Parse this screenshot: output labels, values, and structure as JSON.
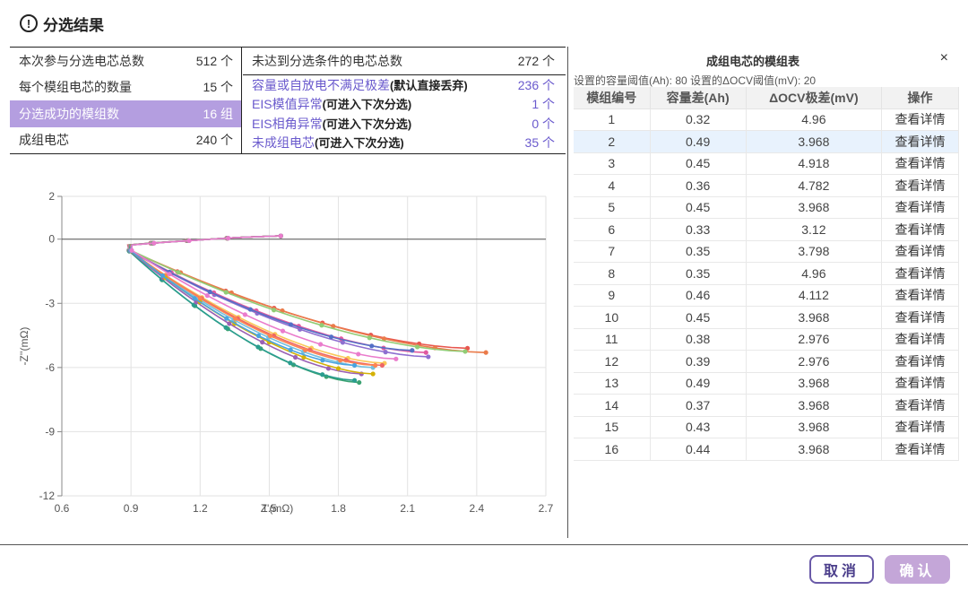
{
  "dialog": {
    "title_icon": "!",
    "title": "分选结果",
    "cancel_label": "取消",
    "confirm_label": "确认"
  },
  "summary_left": [
    {
      "label": "本次参与分选电芯总数",
      "value": "512 个"
    },
    {
      "label": "每个模组电芯的数量",
      "value": "15 个"
    },
    {
      "label": "分选成功的模组数",
      "value": "16 组",
      "active": true
    },
    {
      "label": "成组电芯",
      "value": "240 个"
    }
  ],
  "summary_right": {
    "header": {
      "label": "未达到分选条件的电芯总数",
      "value": "272 个"
    },
    "rows": [
      {
        "label": "容量或自放电不满足极差",
        "note": "(默认直接丢弃)",
        "value": "236 个"
      },
      {
        "label": "EIS模值异常",
        "note": "(可进入下次分选)",
        "value": "1 个"
      },
      {
        "label": "EIS相角异常",
        "note": "(可进入下次分选)",
        "value": "0 个"
      },
      {
        "label": "未成组电芯",
        "note": "(可进入下次分选)",
        "value": "35 个"
      }
    ]
  },
  "chart_data": {
    "type": "scatter",
    "xlabel": "Z'(mΩ)",
    "ylabel": "-Z''(mΩ)",
    "xlim": [
      0.6,
      2.7
    ],
    "ylim": [
      -12,
      2
    ],
    "xticks": [
      0.6,
      0.9,
      1.2,
      1.5,
      1.8,
      2.1,
      2.4,
      2.7
    ],
    "yticks": [
      2,
      0,
      -3,
      -6,
      -9,
      -12
    ],
    "xtick_labels": [
      "0.6",
      "0.9",
      "1.2",
      "1.5",
      "1.8",
      "2.1",
      "2.4",
      "2.7"
    ],
    "ytick_labels": [
      "2",
      "0",
      "-3",
      "-6",
      "-9",
      "-12"
    ],
    "grid": true,
    "series": [
      {
        "color": "#e8574f",
        "tip": [
          2.36,
          -5.1
        ]
      },
      {
        "color": "#ea7b4a",
        "tip": [
          2.44,
          -5.3
        ]
      },
      {
        "color": "#8e6fd0",
        "tip": [
          2.19,
          -5.5
        ]
      },
      {
        "color": "#e05aa0",
        "tip": [
          2.18,
          -5.3
        ]
      },
      {
        "color": "#5470c6",
        "tip": [
          2.12,
          -5.2
        ]
      },
      {
        "color": "#91cc75",
        "tip": [
          2.35,
          -5.25
        ]
      },
      {
        "color": "#fac858",
        "tip": [
          2.0,
          -5.8
        ]
      },
      {
        "color": "#ee6666",
        "tip": [
          1.99,
          -5.9
        ]
      },
      {
        "color": "#73c0de",
        "tip": [
          1.95,
          -6.0
        ]
      },
      {
        "color": "#3ba272",
        "tip": [
          1.89,
          -6.7
        ]
      },
      {
        "color": "#2a9d8f",
        "tip": [
          1.87,
          -6.6
        ]
      },
      {
        "color": "#fc8452",
        "tip": [
          1.96,
          -5.9
        ]
      },
      {
        "color": "#9a60b4",
        "tip": [
          1.9,
          -6.3
        ]
      },
      {
        "color": "#d4b106",
        "tip": [
          1.95,
          -6.3
        ]
      },
      {
        "color": "#4aa3df",
        "tip": [
          1.87,
          -5.9
        ]
      },
      {
        "color": "#ea7ccc",
        "tip": [
          2.05,
          -5.6
        ]
      }
    ]
  },
  "module_table": {
    "title": "成组电芯的模组表",
    "close_icon": "×",
    "subtitle": "设置的容量阈值(Ah): 80 设置的ΔOCV阈值(mV): 20",
    "columns": [
      "模组编号",
      "容量差(Ah)",
      "ΔOCV极差(mV)",
      "操作"
    ],
    "rows": [
      [
        "1",
        "0.32",
        "4.96",
        "查看详情"
      ],
      [
        "2",
        "0.49",
        "3.968",
        "查看详情"
      ],
      [
        "3",
        "0.45",
        "4.918",
        "查看详情"
      ],
      [
        "4",
        "0.36",
        "4.782",
        "查看详情"
      ],
      [
        "5",
        "0.45",
        "3.968",
        "查看详情"
      ],
      [
        "6",
        "0.33",
        "3.12",
        "查看详情"
      ],
      [
        "7",
        "0.35",
        "3.798",
        "查看详情"
      ],
      [
        "8",
        "0.35",
        "4.96",
        "查看详情"
      ],
      [
        "9",
        "0.46",
        "4.112",
        "查看详情"
      ],
      [
        "10",
        "0.45",
        "3.968",
        "查看详情"
      ],
      [
        "11",
        "0.38",
        "2.976",
        "查看详情"
      ],
      [
        "12",
        "0.39",
        "2.976",
        "查看详情"
      ],
      [
        "13",
        "0.49",
        "3.968",
        "查看详情"
      ],
      [
        "14",
        "0.37",
        "3.968",
        "查看详情"
      ],
      [
        "15",
        "0.43",
        "3.968",
        "查看详情"
      ],
      [
        "16",
        "0.44",
        "3.968",
        "查看详情"
      ]
    ],
    "selected_row": 1
  }
}
